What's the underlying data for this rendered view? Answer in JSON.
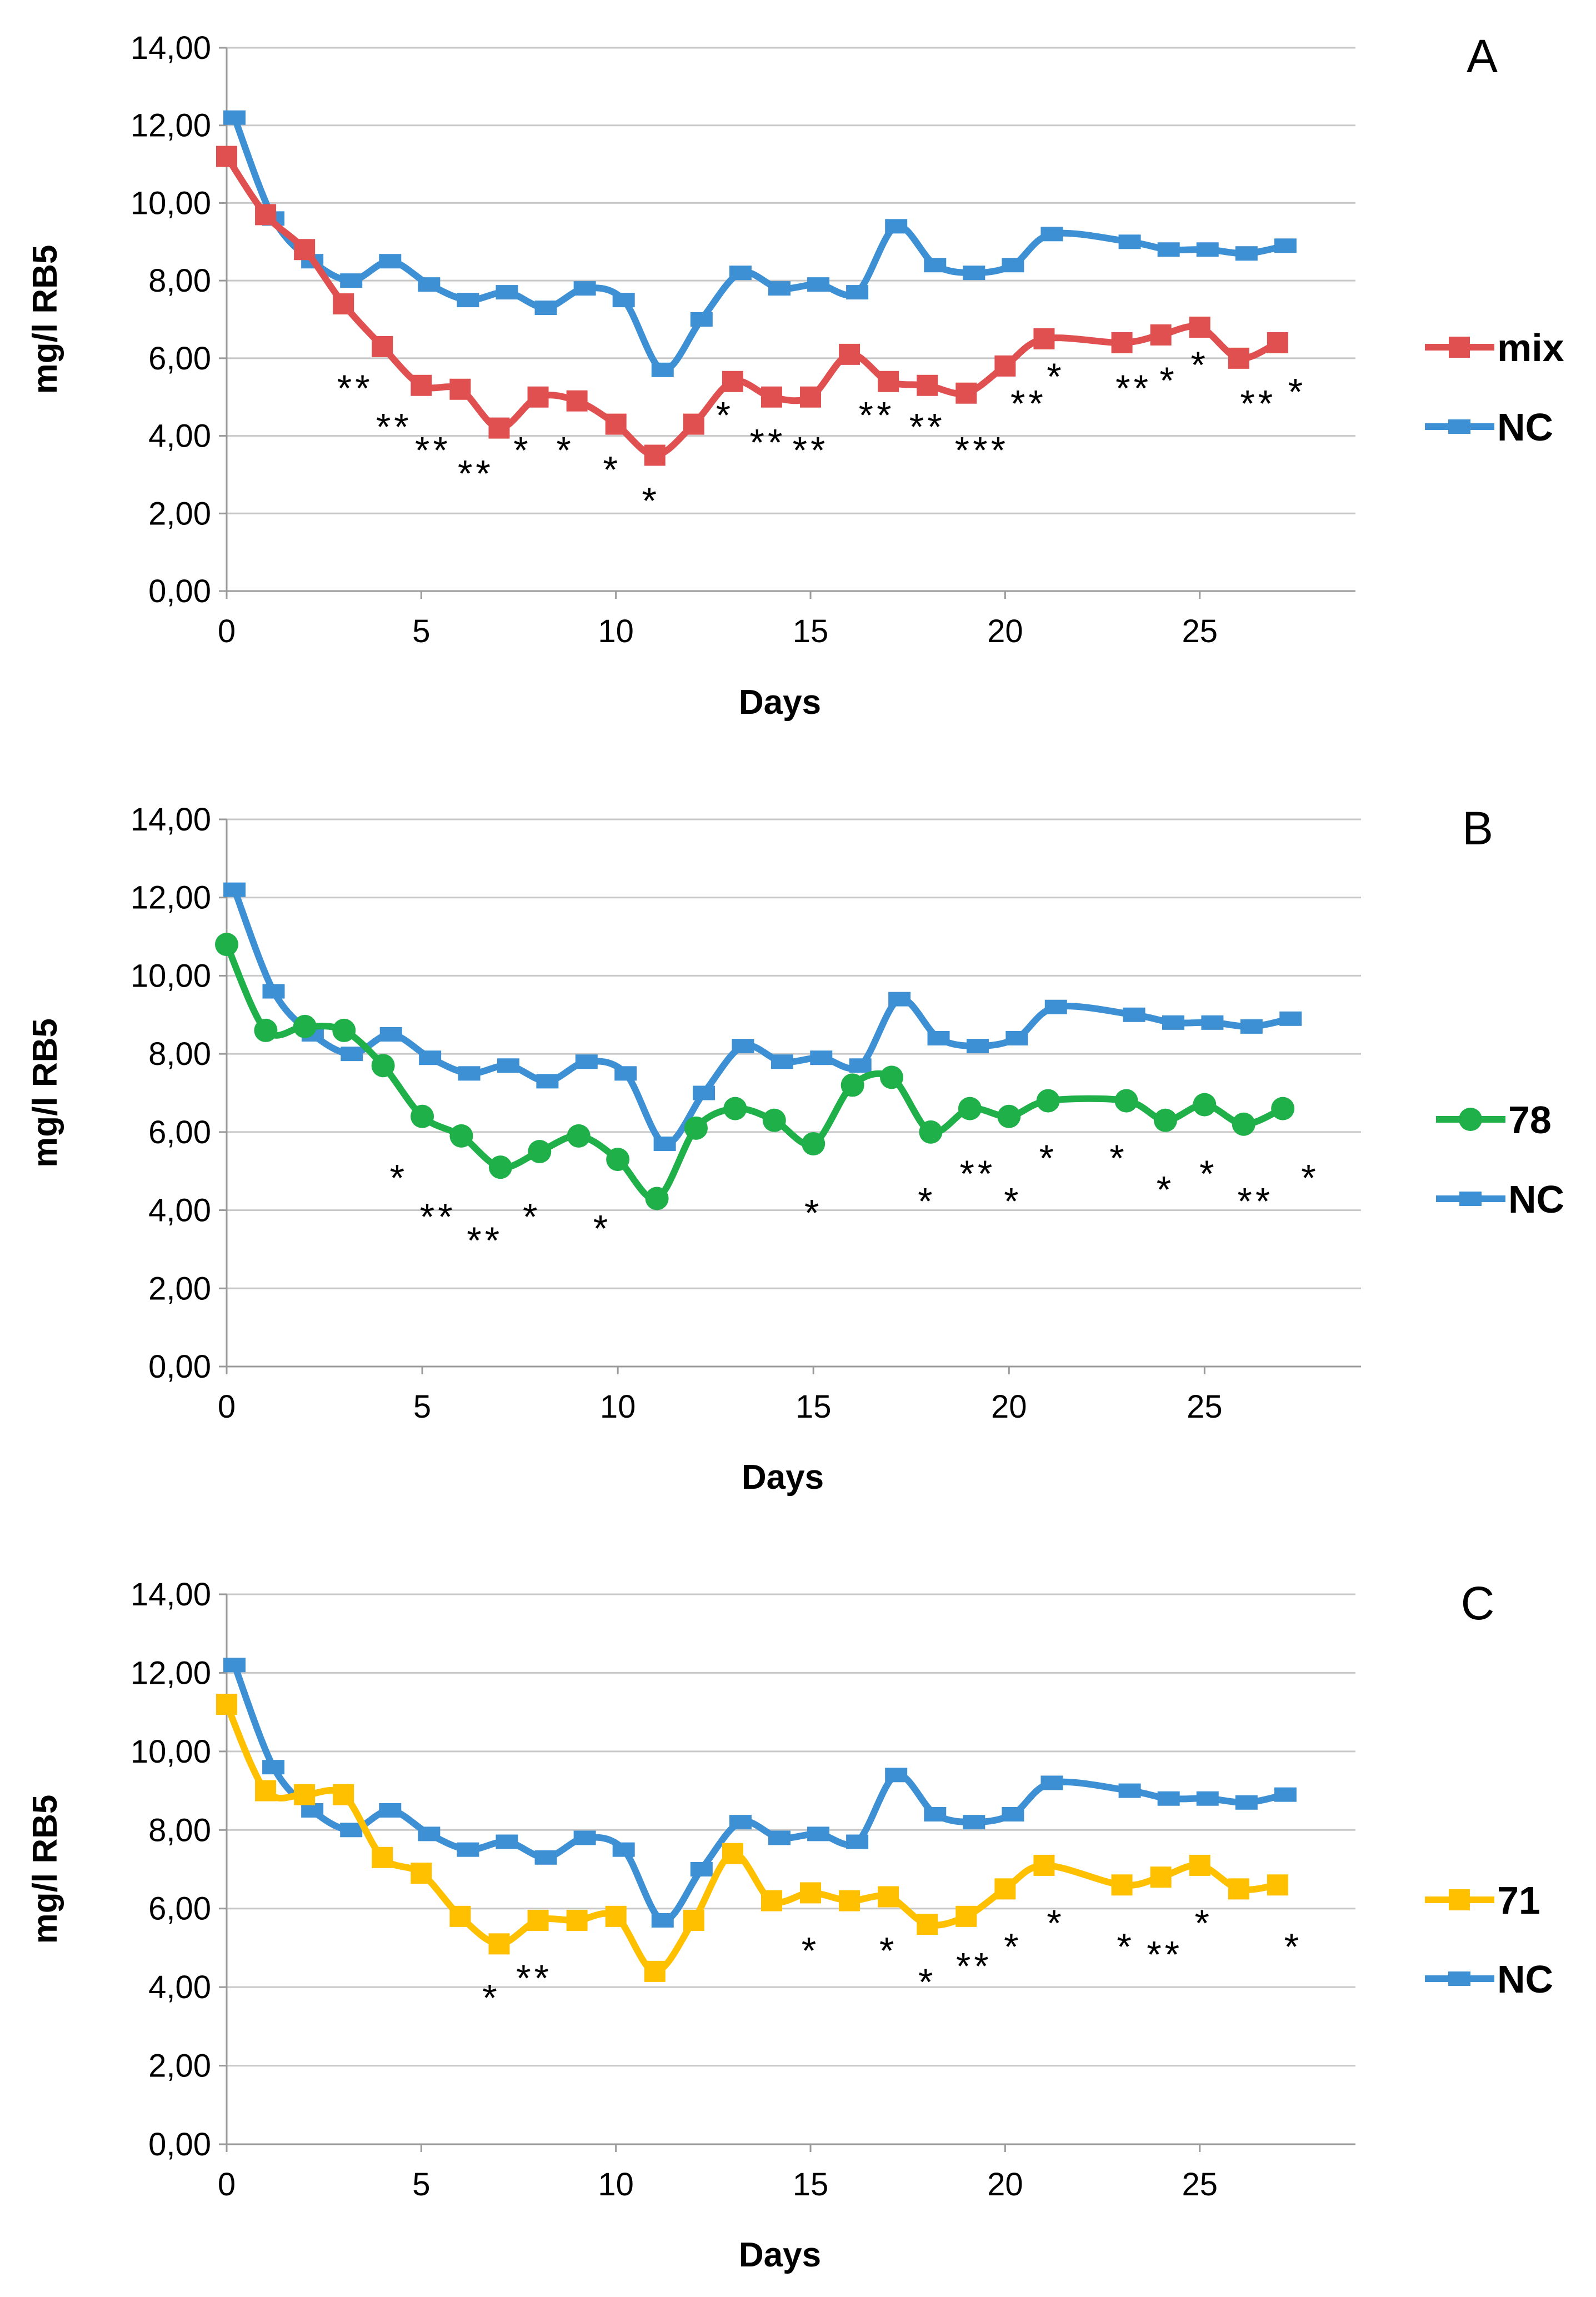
{
  "figure": {
    "x_label": "Days",
    "y_label": "mg/l RB5"
  },
  "chart_data": [
    {
      "type": "line",
      "panel": "A",
      "xlabel": "Days",
      "ylabel": "mg/l RB5",
      "xlim": [
        0,
        29
      ],
      "ylim": [
        0,
        14
      ],
      "x_ticks": [
        0,
        5,
        10,
        15,
        20,
        25
      ],
      "y_ticks": [
        0,
        2,
        4,
        6,
        8,
        10,
        12,
        14
      ],
      "y_tick_labels": [
        "0,00",
        "2,00",
        "4,00",
        "6,00",
        "8,00",
        "10,00",
        "12,00",
        "14,00"
      ],
      "legend_position": "right",
      "series": [
        {
          "name": "mix",
          "color": "#e05050",
          "marker": "square",
          "x": [
            0,
            1,
            2,
            3,
            4,
            5,
            6,
            7,
            8,
            9,
            10,
            11,
            12,
            13,
            14,
            15,
            16,
            17,
            18,
            19,
            20,
            21,
            23,
            24,
            25,
            26,
            27
          ],
          "values": [
            11.2,
            9.7,
            8.8,
            7.4,
            6.3,
            5.3,
            5.2,
            4.2,
            5.0,
            4.9,
            4.3,
            3.5,
            4.3,
            5.4,
            5.0,
            5.0,
            6.1,
            5.4,
            5.3,
            5.1,
            5.8,
            6.5,
            6.4,
            6.6,
            6.8,
            6.0,
            6.4
          ]
        },
        {
          "name": "NC",
          "color": "#3d90d4",
          "marker": "dash",
          "x": [
            0.2,
            1.2,
            2.2,
            3.2,
            4.2,
            5.2,
            6.2,
            7.2,
            8.2,
            9.2,
            10.2,
            11.2,
            12.2,
            13.2,
            14.2,
            15.2,
            16.2,
            17.2,
            18.2,
            19.2,
            20.2,
            21.2,
            23.2,
            24.2,
            25.2,
            26.2,
            27.2
          ],
          "values": [
            12.2,
            9.6,
            8.5,
            8.0,
            8.5,
            7.9,
            7.5,
            7.7,
            7.3,
            7.8,
            7.5,
            5.7,
            7.0,
            8.2,
            7.8,
            7.9,
            7.7,
            9.4,
            8.4,
            8.2,
            8.4,
            9.2,
            9.0,
            8.8,
            8.8,
            8.7,
            8.9
          ]
        }
      ],
      "significance": [
        {
          "day": 3.3,
          "y": 5.3,
          "label": "**"
        },
        {
          "day": 4.3,
          "y": 4.3,
          "label": "**"
        },
        {
          "day": 5.3,
          "y": 3.7,
          "label": "**"
        },
        {
          "day": 6.4,
          "y": 3.1,
          "label": "**"
        },
        {
          "day": 7.6,
          "y": 3.7,
          "label": "*"
        },
        {
          "day": 8.7,
          "y": 3.7,
          "label": "*"
        },
        {
          "day": 9.9,
          "y": 3.2,
          "label": "*"
        },
        {
          "day": 10.9,
          "y": 2.4,
          "label": "*"
        },
        {
          "day": 12.8,
          "y": 4.6,
          "label": "*"
        },
        {
          "day": 13.9,
          "y": 3.9,
          "label": "**"
        },
        {
          "day": 15.0,
          "y": 3.7,
          "label": "**"
        },
        {
          "day": 16.7,
          "y": 4.6,
          "label": "**"
        },
        {
          "day": 18.0,
          "y": 4.3,
          "label": "**"
        },
        {
          "day": 19.4,
          "y": 3.7,
          "label": "***"
        },
        {
          "day": 20.6,
          "y": 4.9,
          "label": "**"
        },
        {
          "day": 21.3,
          "y": 5.6,
          "label": "*"
        },
        {
          "day": 23.3,
          "y": 5.3,
          "label": "**"
        },
        {
          "day": 24.2,
          "y": 5.5,
          "label": "*"
        },
        {
          "day": 25.0,
          "y": 5.9,
          "label": "*"
        },
        {
          "day": 26.5,
          "y": 4.9,
          "label": "**"
        },
        {
          "day": 27.5,
          "y": 5.2,
          "label": "*"
        }
      ]
    },
    {
      "type": "line",
      "panel": "B",
      "xlabel": "Days",
      "ylabel": "mg/l RB5",
      "xlim": [
        0,
        29
      ],
      "ylim": [
        0,
        14
      ],
      "x_ticks": [
        0,
        5,
        10,
        15,
        20,
        25
      ],
      "y_ticks": [
        0,
        2,
        4,
        6,
        8,
        10,
        12,
        14
      ],
      "y_tick_labels": [
        "0,00",
        "2,00",
        "4,00",
        "6,00",
        "8,00",
        "10,00",
        "12,00",
        "14,00"
      ],
      "legend_position": "right",
      "series": [
        {
          "name": "78",
          "color": "#1fb04a",
          "marker": "circle",
          "x": [
            0,
            1,
            2,
            3,
            4,
            5,
            6,
            7,
            8,
            9,
            10,
            11,
            12,
            13,
            14,
            15,
            16,
            17,
            18,
            19,
            20,
            21,
            23,
            24,
            25,
            26,
            27
          ],
          "values": [
            10.8,
            8.6,
            8.7,
            8.6,
            7.7,
            6.4,
            5.9,
            5.1,
            5.5,
            5.9,
            5.3,
            4.3,
            6.1,
            6.6,
            6.3,
            5.7,
            7.2,
            7.4,
            6.0,
            6.6,
            6.4,
            6.8,
            6.8,
            6.3,
            6.7,
            6.2,
            6.6
          ]
        },
        {
          "name": "NC",
          "color": "#3d90d4",
          "marker": "dash",
          "x": [
            0.2,
            1.2,
            2.2,
            3.2,
            4.2,
            5.2,
            6.2,
            7.2,
            8.2,
            9.2,
            10.2,
            11.2,
            12.2,
            13.2,
            14.2,
            15.2,
            16.2,
            17.2,
            18.2,
            19.2,
            20.2,
            21.2,
            23.2,
            24.2,
            25.2,
            26.2,
            27.2
          ],
          "values": [
            12.2,
            9.6,
            8.5,
            8.0,
            8.5,
            7.9,
            7.5,
            7.7,
            7.3,
            7.8,
            7.5,
            5.7,
            7.0,
            8.2,
            7.8,
            7.9,
            7.7,
            9.4,
            8.4,
            8.2,
            8.4,
            9.2,
            9.0,
            8.8,
            8.8,
            8.7,
            8.9
          ]
        }
      ],
      "significance": [
        {
          "day": 4.4,
          "y": 4.9,
          "label": "*"
        },
        {
          "day": 5.4,
          "y": 3.9,
          "label": "**"
        },
        {
          "day": 6.6,
          "y": 3.3,
          "label": "**"
        },
        {
          "day": 7.8,
          "y": 3.9,
          "label": "*"
        },
        {
          "day": 9.6,
          "y": 3.6,
          "label": "*"
        },
        {
          "day": 15.0,
          "y": 4.0,
          "label": "*"
        },
        {
          "day": 17.9,
          "y": 4.3,
          "label": "*"
        },
        {
          "day": 19.2,
          "y": 5.0,
          "label": "**"
        },
        {
          "day": 20.1,
          "y": 4.3,
          "label": "*"
        },
        {
          "day": 21.0,
          "y": 5.4,
          "label": "*"
        },
        {
          "day": 22.8,
          "y": 5.4,
          "label": "*"
        },
        {
          "day": 24.0,
          "y": 4.6,
          "label": "*"
        },
        {
          "day": 25.1,
          "y": 5.0,
          "label": "*"
        },
        {
          "day": 26.3,
          "y": 4.3,
          "label": "**"
        },
        {
          "day": 27.7,
          "y": 4.9,
          "label": "*"
        }
      ]
    },
    {
      "type": "line",
      "panel": "C",
      "xlabel": "Days",
      "ylabel": "mg/l RB5",
      "xlim": [
        0,
        29
      ],
      "ylim": [
        0,
        14
      ],
      "x_ticks": [
        0,
        5,
        10,
        15,
        20,
        25
      ],
      "y_ticks": [
        0,
        2,
        4,
        6,
        8,
        10,
        12,
        14
      ],
      "y_tick_labels": [
        "0,00",
        "2,00",
        "4,00",
        "6,00",
        "8,00",
        "10,00",
        "12,00",
        "14,00"
      ],
      "legend_position": "right",
      "series": [
        {
          "name": "71",
          "color": "#ffc000",
          "marker": "square",
          "x": [
            0,
            1,
            2,
            3,
            4,
            5,
            6,
            7,
            8,
            9,
            10,
            11,
            12,
            13,
            14,
            15,
            16,
            17,
            18,
            19,
            20,
            21,
            23,
            24,
            25,
            26,
            27
          ],
          "values": [
            11.2,
            9.0,
            8.9,
            8.9,
            7.3,
            6.9,
            5.8,
            5.1,
            5.7,
            5.7,
            5.8,
            4.4,
            5.7,
            7.4,
            6.2,
            6.4,
            6.2,
            6.3,
            5.6,
            5.8,
            6.5,
            7.1,
            6.6,
            6.8,
            7.1,
            6.5,
            6.6
          ]
        },
        {
          "name": "NC",
          "color": "#3d90d4",
          "marker": "dash",
          "x": [
            0.2,
            1.2,
            2.2,
            3.2,
            4.2,
            5.2,
            6.2,
            7.2,
            8.2,
            9.2,
            10.2,
            11.2,
            12.2,
            13.2,
            14.2,
            15.2,
            16.2,
            17.2,
            18.2,
            19.2,
            20.2,
            21.2,
            23.2,
            24.2,
            25.2,
            26.2,
            27.2
          ],
          "values": [
            12.2,
            9.6,
            8.5,
            8.0,
            8.5,
            7.9,
            7.5,
            7.7,
            7.3,
            7.8,
            7.5,
            5.7,
            7.0,
            8.2,
            7.8,
            7.9,
            7.7,
            9.4,
            8.4,
            8.2,
            8.4,
            9.2,
            9.0,
            8.8,
            8.8,
            8.7,
            8.9
          ]
        }
      ],
      "significance": [
        {
          "day": 6.8,
          "y": 3.8,
          "label": "*"
        },
        {
          "day": 7.9,
          "y": 4.3,
          "label": "**"
        },
        {
          "day": 15.0,
          "y": 5.0,
          "label": "*"
        },
        {
          "day": 17.0,
          "y": 5.0,
          "label": "*"
        },
        {
          "day": 18.0,
          "y": 4.2,
          "label": "*"
        },
        {
          "day": 19.2,
          "y": 4.6,
          "label": "**"
        },
        {
          "day": 20.2,
          "y": 5.1,
          "label": "*"
        },
        {
          "day": 21.3,
          "y": 5.7,
          "label": "*"
        },
        {
          "day": 23.1,
          "y": 5.1,
          "label": "*"
        },
        {
          "day": 24.1,
          "y": 4.9,
          "label": "**"
        },
        {
          "day": 25.1,
          "y": 5.7,
          "label": "*"
        },
        {
          "day": 27.4,
          "y": 5.1,
          "label": "*"
        }
      ]
    }
  ]
}
